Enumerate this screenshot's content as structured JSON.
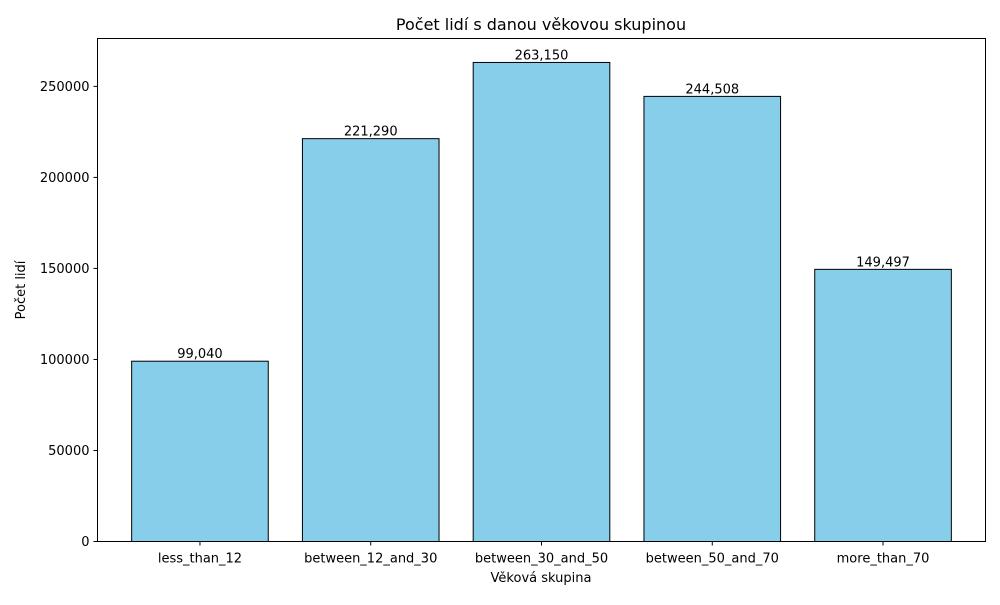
{
  "chart_data": {
    "type": "bar",
    "title": "Počet lidí s danou věkovou skupinou",
    "xlabel": "Věková skupina",
    "ylabel": "Počet lidí",
    "categories": [
      "less_than_12",
      "between_12_and_30",
      "between_30_and_50",
      "between_50_and_70",
      "more_than_70"
    ],
    "values": [
      99040,
      221290,
      263150,
      244508,
      149497
    ],
    "value_labels": [
      "99,040",
      "221,290",
      "263,150",
      "244,508",
      "149,497"
    ],
    "yticks": [
      0,
      50000,
      100000,
      150000,
      200000,
      250000
    ],
    "ytick_labels": [
      "0",
      "50000",
      "100000",
      "150000",
      "200000",
      "250000"
    ],
    "ylim": [
      0,
      276307.5
    ],
    "grid": false,
    "legend": "none",
    "colors": {
      "bar_fill": "#87ceeb",
      "bar_edge": "#000000",
      "axis": "#000000",
      "background": "#ffffff"
    }
  }
}
